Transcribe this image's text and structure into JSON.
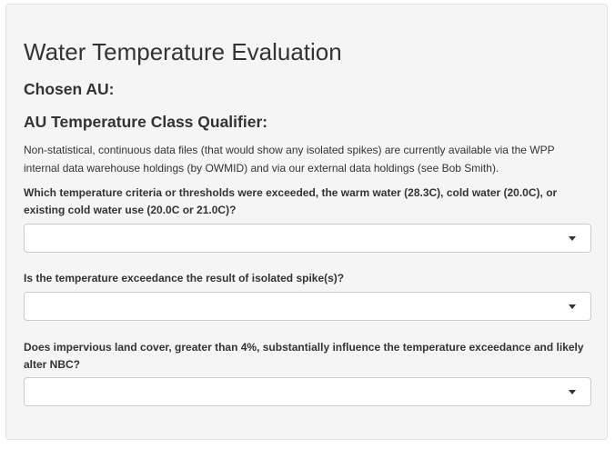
{
  "form": {
    "title": "Water Temperature Evaluation",
    "chosen_au_label": "Chosen AU:",
    "qualifier_label": "AU Temperature Class Qualifier:",
    "description": "Non-statistical, continuous data files (that would show any isolated spikes) are currently available via the WPP internal data warehouse holdings (by OWMID) and via our external data holdings (see Bob Smith).",
    "questions": [
      {
        "label": "Which temperature criteria or thresholds were exceeded, the warm water (28.3C), cold water (20.0C), or existing cold water use (20.0C or 21.0C)?",
        "selected": ""
      },
      {
        "label": "Is the temperature exceedance the result of isolated spike(s)?",
        "selected": ""
      },
      {
        "label": "Does impervious land cover, greater than 4%, substantially influence the temperature exceedance and likely alter NBC?",
        "selected": ""
      }
    ]
  }
}
